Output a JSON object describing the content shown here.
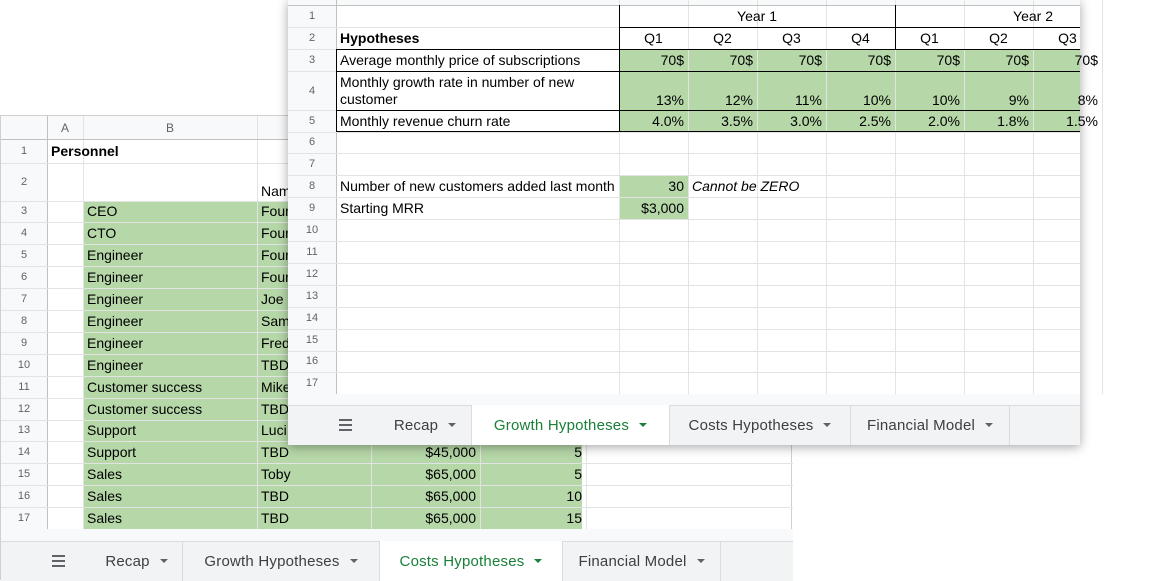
{
  "back_sheet": {
    "column_headers": [
      "A",
      "B"
    ],
    "row_numbers": [
      1,
      2,
      3,
      4,
      5,
      6,
      7,
      8,
      9,
      10,
      11,
      12,
      13,
      14,
      15,
      16,
      17
    ],
    "title": "Personnel",
    "name_header": "Nam",
    "rows": [
      [
        "CEO",
        "Foun"
      ],
      [
        "CTO",
        "Foun"
      ],
      [
        "Engineer",
        "Foun"
      ],
      [
        "Engineer",
        "Foun"
      ],
      [
        "Engineer",
        "Joe"
      ],
      [
        "Engineer",
        "Sam"
      ],
      [
        "Engineer",
        "Fred"
      ],
      [
        "Engineer",
        "TBD"
      ],
      [
        "Customer success",
        "Mike"
      ],
      [
        "Customer success",
        "TBD"
      ],
      [
        "Support",
        "Luci"
      ],
      [
        "Support",
        "TBD",
        "$45,000",
        5
      ],
      [
        "Sales",
        "Toby",
        "$65,000",
        5
      ],
      [
        "Sales",
        "TBD",
        "$65,000",
        10
      ],
      [
        "Sales",
        "TBD",
        "$65,000",
        15
      ]
    ],
    "tabs": [
      "Recap",
      "Growth Hypotheses",
      "Costs Hypotheses",
      "Financial Model"
    ],
    "active_tab": 2
  },
  "front_sheet": {
    "row_numbers": [
      1,
      2,
      3,
      4,
      5,
      6,
      7,
      8,
      9,
      10,
      11,
      12,
      13,
      14,
      15,
      16,
      17
    ],
    "years": [
      "Year 1",
      "Year 2"
    ],
    "title": "Hypotheses",
    "quarters": [
      "Q1",
      "Q2",
      "Q3",
      "Q4",
      "Q1",
      "Q2",
      "Q3"
    ],
    "rows": [
      {
        "label": "Average monthly price of subscriptions",
        "values": [
          "70$",
          "70$",
          "70$",
          "70$",
          "70$",
          "70$",
          "70$"
        ]
      },
      {
        "label": "Monthly growth rate in number of new customer",
        "values": [
          "13%",
          "12%",
          "11%",
          "10%",
          "10%",
          "9%",
          "8%"
        ]
      },
      {
        "label": "Monthly revenue churn rate",
        "values": [
          "4.0%",
          "3.5%",
          "3.0%",
          "2.5%",
          "2.0%",
          "1.8%",
          "1.5%"
        ]
      }
    ],
    "customers_label": "Number of new customers added last month",
    "customers_value": 30,
    "note": "Cannot be ZERO",
    "mrr_label": "Starting MRR",
    "mrr_value": "$3,000",
    "tabs": [
      "Recap",
      "Growth Hypotheses",
      "Costs Hypotheses",
      "Financial Model"
    ],
    "active_tab": 1
  }
}
